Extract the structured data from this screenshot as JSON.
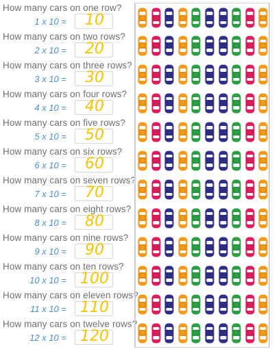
{
  "rows": [
    {
      "question": "How many cars on one row?",
      "equation": "1 x 10 =",
      "answer": "10"
    },
    {
      "question": "How many cars on two rows?",
      "equation": "2 x 10 =",
      "answer": "20"
    },
    {
      "question": "How many cars on three rows?",
      "equation": "3 x 10 =",
      "answer": "30"
    },
    {
      "question": "How many cars on four rows?",
      "equation": "4 x 10 =",
      "answer": "40"
    },
    {
      "question": "How many cars on five rows?",
      "equation": "5 x 10 =",
      "answer": "50"
    },
    {
      "question": "How many cars on six rows?",
      "equation": "6 x 10 =",
      "answer": "60"
    },
    {
      "question": "How many cars on seven rows?",
      "equation": "7 x 10 =",
      "answer": "70"
    },
    {
      "question": "How many cars on eight rows?",
      "equation": "8 x 10 =",
      "answer": "80"
    },
    {
      "question": "How many cars on nine rows?",
      "equation": "9 x 10 =",
      "answer": "90"
    },
    {
      "question": "How many cars on ten rows?",
      "equation": "10 x 10 =",
      "answer": "100"
    },
    {
      "question": "How many cars on eleven rows?",
      "equation": "11 x 10 =",
      "answer": "110"
    },
    {
      "question": "How many cars on twelve rows?",
      "equation": "12 x 10 =",
      "answer": "120"
    }
  ],
  "cars_per_row": 10,
  "car_colors_sequence": [
    "#f39a1c",
    "#dc1f5a",
    "#2f2f86",
    "#f39a1c",
    "#2e9e45",
    "#2f2f86",
    "#2f2f86",
    "#2e9e45",
    "#dc1f5a",
    "#f39a1c"
  ],
  "colors": {
    "orange": "#f39a1c",
    "red": "#dc1f5a",
    "blue": "#2f2f86",
    "green": "#2e9e45",
    "question_text": "#6f6f6f",
    "equation_text": "#4a8fd0",
    "answer_text": "#f5c400"
  },
  "icon": "car-icon"
}
